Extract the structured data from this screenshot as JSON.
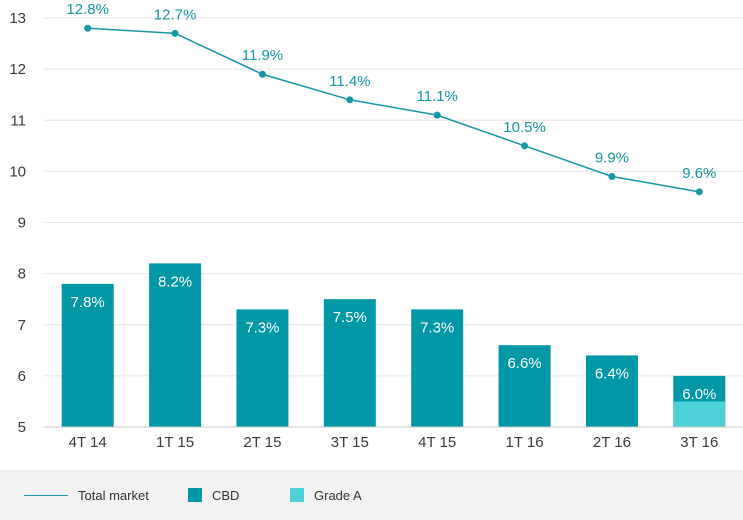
{
  "chart_data": {
    "type": "bar",
    "categories": [
      "4T 14",
      "1T 15",
      "2T 15",
      "3T 15",
      "4T 15",
      "1T 16",
      "2T 16",
      "3T 16"
    ],
    "ylim": [
      5,
      13
    ],
    "yticks": [
      5,
      6,
      7,
      8,
      9,
      10,
      11,
      12,
      13
    ],
    "grid": true,
    "legend_position": "bottom",
    "series": [
      {
        "name": "Total market",
        "kind": "line",
        "color": "#1697a6",
        "values": [
          12.8,
          12.7,
          11.9,
          11.4,
          11.1,
          10.5,
          9.9,
          9.6
        ],
        "labels": [
          "12.8%",
          "12.7%",
          "11.9%",
          "11.4%",
          "11.1%",
          "10.5%",
          "9.9%",
          "9.6%"
        ]
      },
      {
        "name": "CBD",
        "kind": "bar",
        "color": "#0097a7",
        "values": [
          7.8,
          8.2,
          7.3,
          7.5,
          7.3,
          6.6,
          6.4,
          6.0
        ],
        "labels": [
          "7.8%",
          "8.2%",
          "7.3%",
          "7.5%",
          "7.3%",
          "6.6%",
          "6.4%",
          "6.0%"
        ]
      },
      {
        "name": "Grade A",
        "kind": "bar",
        "color": "#4dd0d8",
        "values": [
          null,
          null,
          null,
          null,
          null,
          null,
          null,
          5.5
        ]
      }
    ]
  },
  "legend": {
    "items": [
      {
        "label": "Total market",
        "marker": "line",
        "color": "#1697a6"
      },
      {
        "label": "CBD",
        "marker": "square",
        "color": "#0097a7"
      },
      {
        "label": "Grade A",
        "marker": "square",
        "color": "#4dd0d8"
      }
    ]
  }
}
